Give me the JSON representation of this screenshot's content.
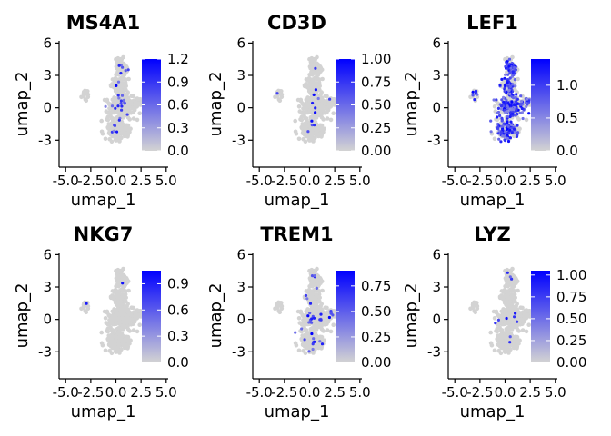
{
  "colors": {
    "low": "#d3d3d3",
    "high": "#0000ff",
    "axis": "#000000",
    "background": "#ffffff"
  },
  "chart_data": [
    {
      "type": "scatter",
      "title": "MS4A1",
      "xlabel": "umap_1",
      "ylabel": "umap_2",
      "xticks": [
        "-5.0",
        "-2.5",
        "0.0",
        "2.5",
        "5.0"
      ],
      "yticks": [
        "-3",
        "0",
        "3",
        "6"
      ],
      "xlim": [
        -5.2,
        5.2
      ],
      "ylim": [
        -5.5,
        6.2
      ],
      "legend": "right",
      "colorbar": {
        "ticks": [
          "0.0",
          "0.3",
          "0.6",
          "0.9",
          "1.2"
        ],
        "tick_values": [
          0,
          0.3,
          0.6,
          0.9,
          1.2
        ],
        "max": 1.2
      },
      "expressing_fraction": 0.05,
      "seed": 11
    },
    {
      "type": "scatter",
      "title": "CD3D",
      "xlabel": "umap_1",
      "ylabel": "umap_2",
      "xticks": [
        "-5.0",
        "-2.5",
        "0.0",
        "2.5",
        "5.0"
      ],
      "yticks": [
        "-3",
        "0",
        "3",
        "6"
      ],
      "xlim": [
        -5.2,
        5.2
      ],
      "ylim": [
        -5.5,
        6.2
      ],
      "legend": "right",
      "colorbar": {
        "ticks": [
          "0.00",
          "0.25",
          "0.50",
          "0.75",
          "1.00"
        ],
        "tick_values": [
          0,
          0.25,
          0.5,
          0.75,
          1.0
        ],
        "max": 1.0
      },
      "expressing_fraction": 0.015,
      "seed": 23
    },
    {
      "type": "scatter",
      "title": "LEF1",
      "xlabel": "umap_1",
      "ylabel": "umap_2",
      "xticks": [
        "-5.0",
        "-2.5",
        "0.0",
        "2.5",
        "5.0"
      ],
      "yticks": [
        "-3",
        "0",
        "3",
        "6"
      ],
      "xlim": [
        -5.2,
        5.2
      ],
      "ylim": [
        -5.5,
        6.2
      ],
      "legend": "right",
      "colorbar": {
        "ticks": [
          "0.0",
          "0.5",
          "1.0"
        ],
        "tick_values": [
          0,
          0.5,
          1.0
        ],
        "max": 1.4
      },
      "expressing_fraction": 0.55,
      "seed": 37
    },
    {
      "type": "scatter",
      "title": "NKG7",
      "xlabel": "umap_1",
      "ylabel": "umap_2",
      "xticks": [
        "-5.0",
        "-2.5",
        "0.0",
        "2.5",
        "5.0"
      ],
      "yticks": [
        "-3",
        "0",
        "3",
        "6"
      ],
      "xlim": [
        -5.2,
        5.2
      ],
      "ylim": [
        -5.5,
        6.2
      ],
      "legend": "right",
      "colorbar": {
        "ticks": [
          "0.0",
          "0.3",
          "0.6",
          "0.9"
        ],
        "tick_values": [
          0,
          0.3,
          0.6,
          0.9
        ],
        "max": 1.05
      },
      "expressing_fraction": 0.01,
      "seed": 41
    },
    {
      "type": "scatter",
      "title": "TREM1",
      "xlabel": "umap_1",
      "ylabel": "umap_2",
      "xticks": [
        "-5.0",
        "-2.5",
        "0.0",
        "2.5",
        "5.0"
      ],
      "yticks": [
        "-3",
        "0",
        "3",
        "6"
      ],
      "xlim": [
        -5.2,
        5.2
      ],
      "ylim": [
        -5.5,
        6.2
      ],
      "legend": "right",
      "colorbar": {
        "ticks": [
          "0.00",
          "0.25",
          "0.50",
          "0.75"
        ],
        "tick_values": [
          0,
          0.25,
          0.5,
          0.75
        ],
        "max": 0.9
      },
      "expressing_fraction": 0.05,
      "seed": 53
    },
    {
      "type": "scatter",
      "title": "LYZ",
      "xlabel": "umap_1",
      "ylabel": "umap_2",
      "xticks": [
        "-5.0",
        "-2.5",
        "0.0",
        "2.5",
        "5.0"
      ],
      "yticks": [
        "-3",
        "0",
        "3",
        "6"
      ],
      "xlim": [
        -5.2,
        5.2
      ],
      "ylim": [
        -5.5,
        6.2
      ],
      "legend": "right",
      "colorbar": {
        "ticks": [
          "0.00",
          "0.25",
          "0.50",
          "0.75",
          "1.00"
        ],
        "tick_values": [
          0,
          0.25,
          0.5,
          0.75,
          1.0
        ],
        "max": 1.05
      },
      "expressing_fraction": 0.015,
      "seed": 67
    }
  ]
}
